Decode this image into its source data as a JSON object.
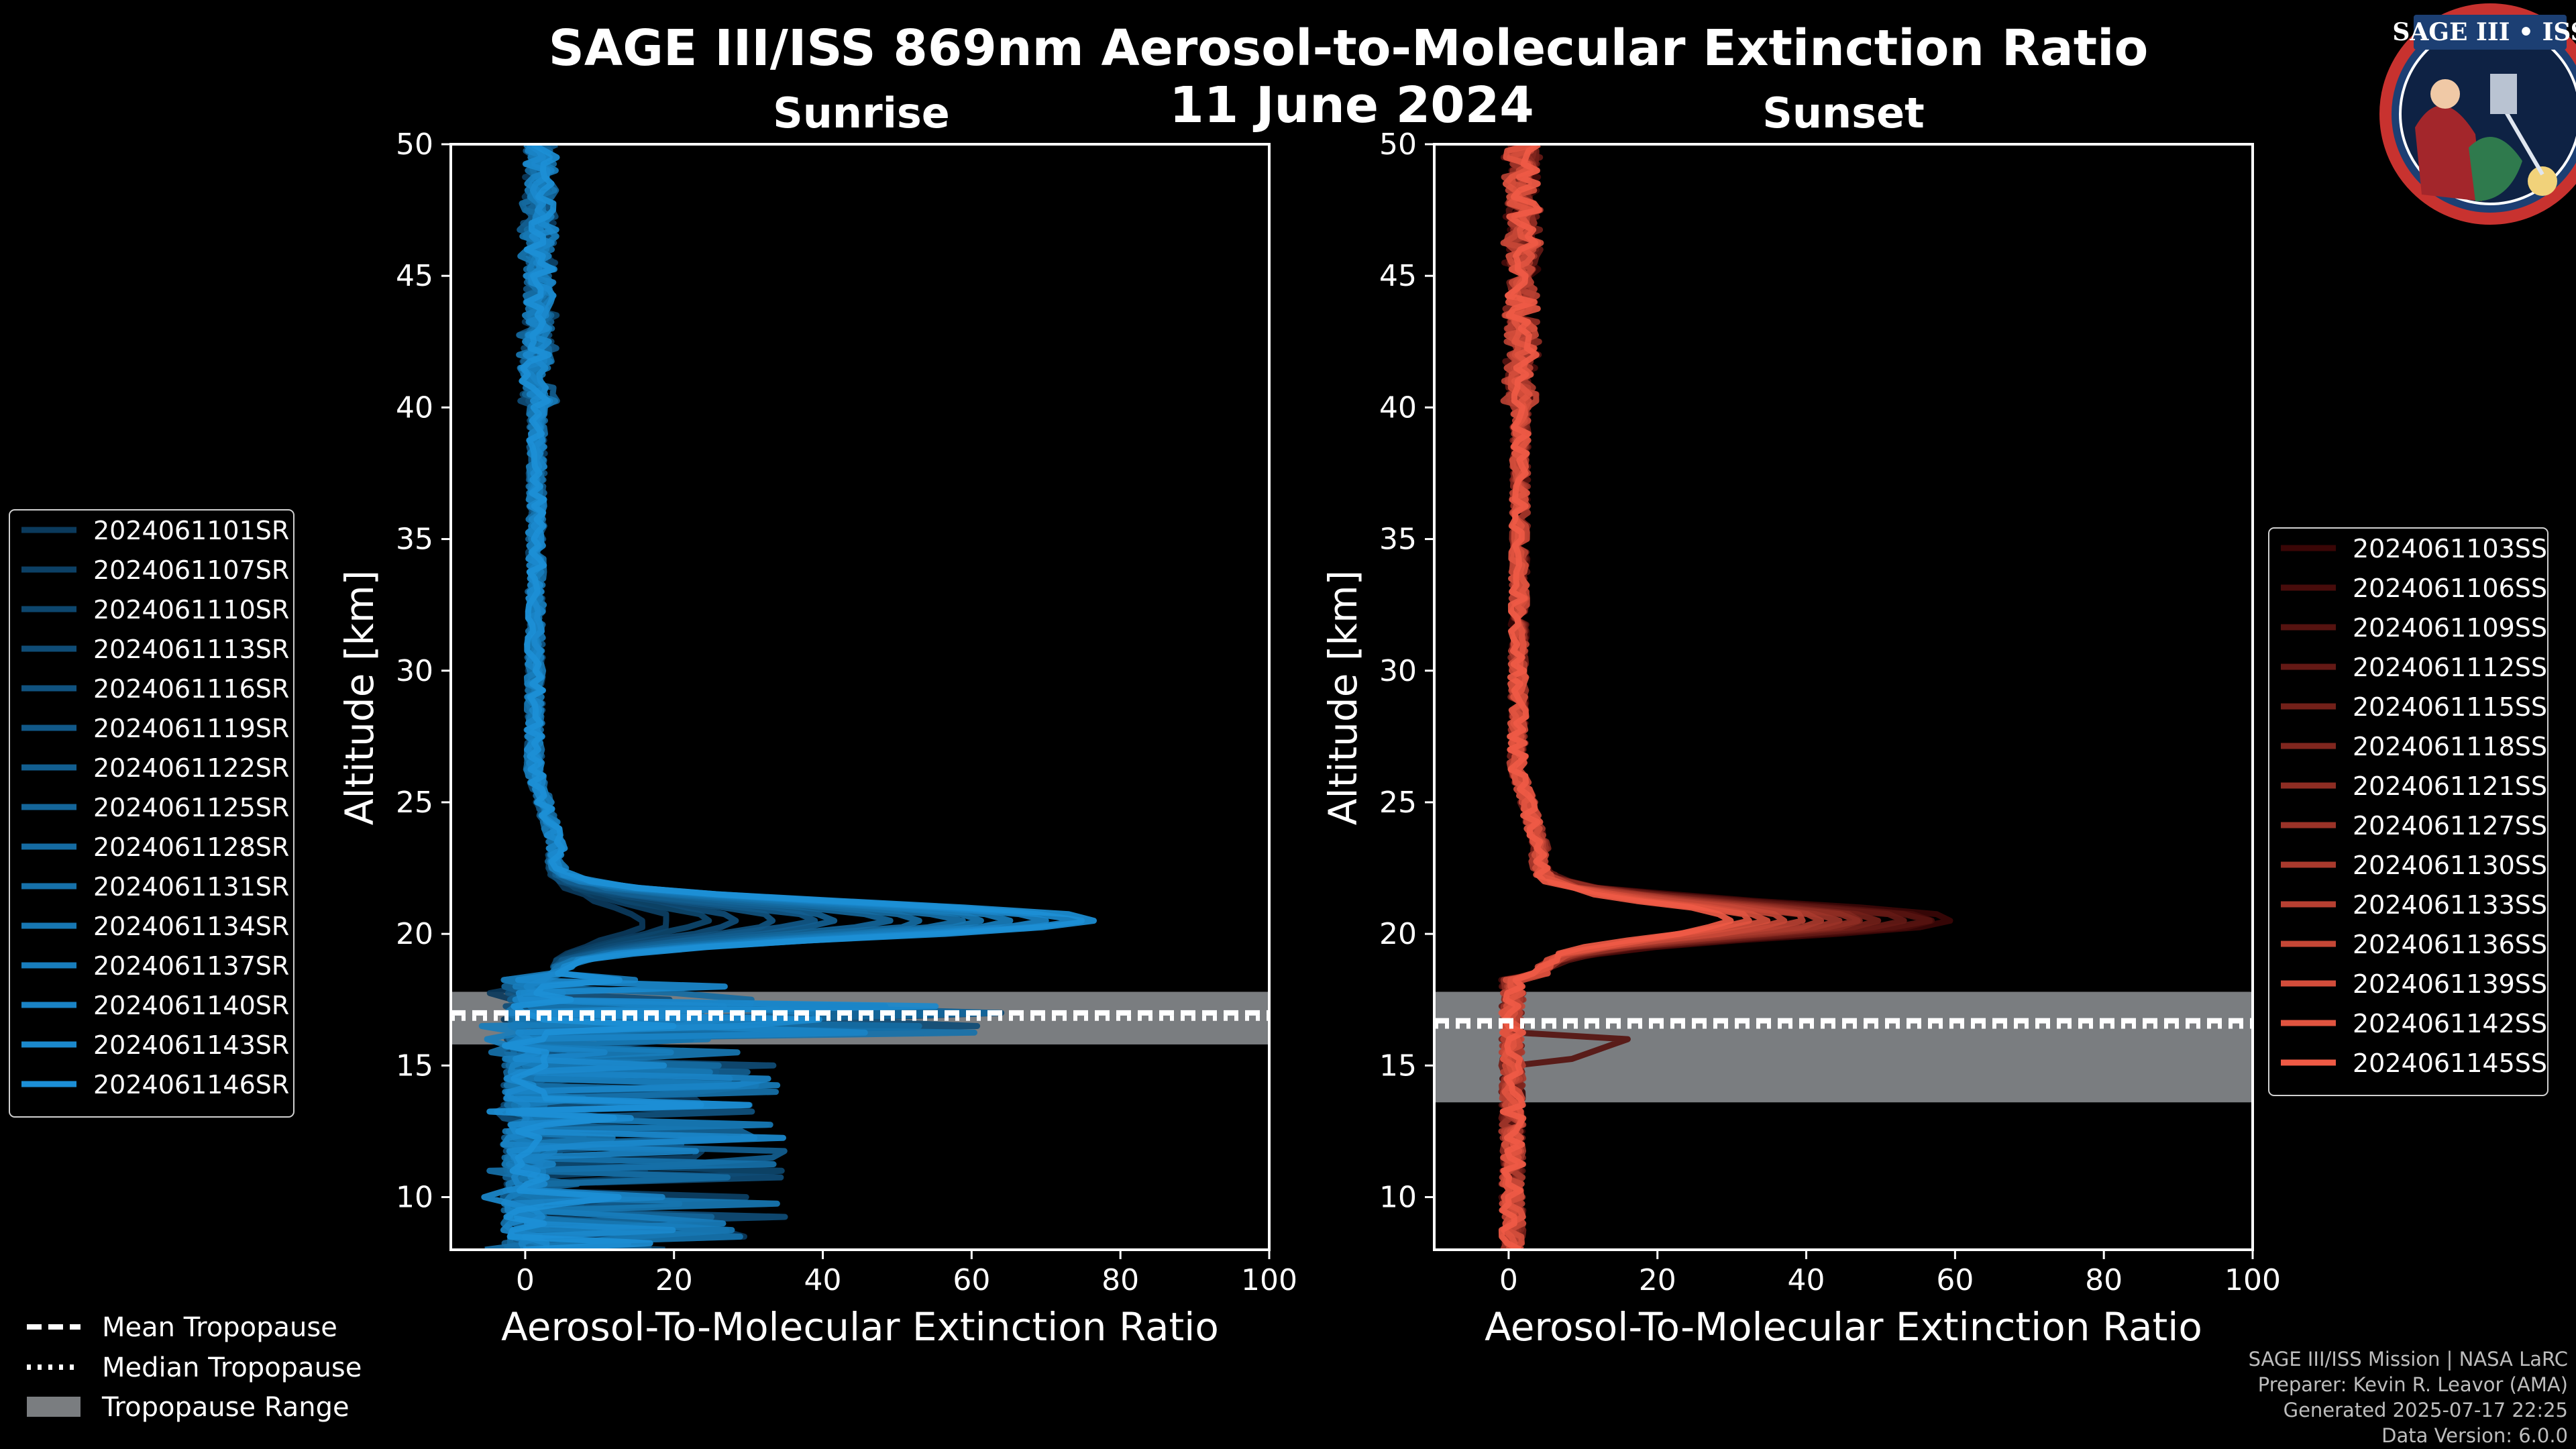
{
  "figure": {
    "title_line1": "SAGE III/ISS 869nm Aerosol-to-Molecular Extinction Ratio",
    "title_line2": "11 June 2024"
  },
  "logo": {
    "text": "SAGE III • ISS"
  },
  "credits": [
    "SAGE III/ISS Mission | NASA LaRC",
    "Preparer: Kevin R. Leavor (AMA)",
    "Generated 2025-07-17 22:25",
    "Data Version: 6.0.0"
  ],
  "tropopause_legend": {
    "mean": "Mean Tropopause",
    "median": "Median Tropopause",
    "range": "Tropopause Range"
  },
  "chart_data": [
    {
      "type": "line",
      "title": "Sunrise",
      "xlabel": "Aerosol-To-Molecular Extinction Ratio",
      "ylabel": "Altitude [km]",
      "xlim": [
        -10,
        100
      ],
      "ylim": [
        8,
        50
      ],
      "xticks": [
        0,
        20,
        40,
        60,
        80,
        100
      ],
      "yticks": [
        10,
        15,
        20,
        25,
        30,
        35,
        40,
        45,
        50
      ],
      "tropopause": {
        "mean": 17.0,
        "median": 16.8,
        "range": [
          15.8,
          17.8
        ]
      },
      "colors": {
        "from": "#0b3a5c",
        "to": "#1c8fd6"
      },
      "peaks": [
        12,
        16,
        20,
        25,
        30,
        34,
        38,
        44,
        50,
        54,
        58,
        62,
        66,
        70,
        73
      ],
      "series": [
        {
          "name": "2024061101SR"
        },
        {
          "name": "2024061107SR"
        },
        {
          "name": "2024061110SR"
        },
        {
          "name": "2024061113SR"
        },
        {
          "name": "2024061116SR"
        },
        {
          "name": "2024061119SR"
        },
        {
          "name": "2024061122SR"
        },
        {
          "name": "2024061125SR"
        },
        {
          "name": "2024061128SR"
        },
        {
          "name": "2024061131SR"
        },
        {
          "name": "2024061134SR"
        },
        {
          "name": "2024061137SR"
        },
        {
          "name": "2024061140SR"
        },
        {
          "name": "2024061143SR"
        },
        {
          "name": "2024061146SR"
        }
      ]
    },
    {
      "type": "line",
      "title": "Sunset",
      "xlabel": "Aerosol-To-Molecular Extinction Ratio",
      "ylabel": "Altitude [km]",
      "xlim": [
        -10,
        100
      ],
      "ylim": [
        8,
        50
      ],
      "xticks": [
        0,
        20,
        40,
        60,
        80,
        100
      ],
      "yticks": [
        10,
        15,
        20,
        25,
        30,
        35,
        40,
        45,
        50
      ],
      "tropopause": {
        "mean": 16.7,
        "median": 16.5,
        "range": [
          13.6,
          17.8
        ]
      },
      "colors": {
        "from": "#3a0606",
        "to": "#ef5a45"
      },
      "peaks": [
        56,
        54,
        52,
        49,
        46,
        44,
        42,
        40,
        38,
        36,
        34,
        30,
        28,
        26
      ],
      "series": [
        {
          "name": "2024061103SS"
        },
        {
          "name": "2024061106SS"
        },
        {
          "name": "2024061109SS"
        },
        {
          "name": "2024061112SS"
        },
        {
          "name": "2024061115SS"
        },
        {
          "name": "2024061118SS"
        },
        {
          "name": "2024061121SS"
        },
        {
          "name": "2024061127SS"
        },
        {
          "name": "2024061130SS"
        },
        {
          "name": "2024061133SS"
        },
        {
          "name": "2024061136SS"
        },
        {
          "name": "2024061139SS"
        },
        {
          "name": "2024061142SS"
        },
        {
          "name": "2024061145SS"
        }
      ]
    }
  ]
}
